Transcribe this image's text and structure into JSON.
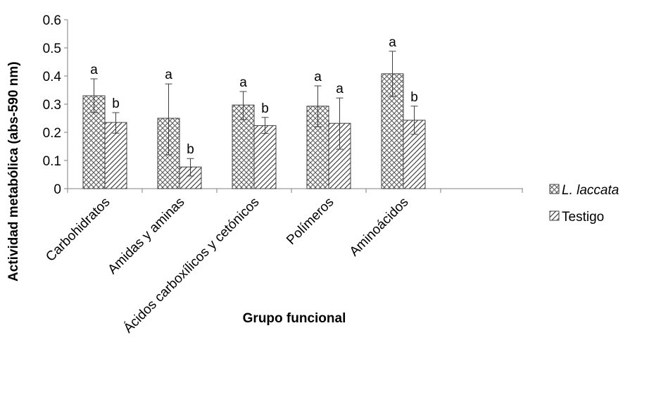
{
  "chart_data": {
    "type": "bar",
    "title": "",
    "xlabel": "Grupo funcional",
    "ylabel": "Actividad metabólica (abs-590 nm)",
    "ylim": [
      0,
      0.6
    ],
    "yticks": [
      "0",
      "0.1",
      "0.2",
      "0.3",
      "0.4",
      "0.5",
      "0.6"
    ],
    "categories": [
      "Carbohidratos",
      "Amidas y aminas",
      "Ácidos carboxílicos y cetónicos",
      "Polímeros",
      "Aminoácidos"
    ],
    "series": [
      {
        "name": "L. laccata",
        "pattern": "crosshatch",
        "values": [
          0.33,
          0.25,
          0.297,
          0.293,
          0.408
        ],
        "error_low": [
          0.27,
          0.12,
          0.245,
          0.22,
          0.328
        ],
        "error_high": [
          0.39,
          0.372,
          0.345,
          0.365,
          0.488
        ],
        "letters": [
          "a",
          "a",
          "a",
          "a",
          "a"
        ]
      },
      {
        "name": "Testigo",
        "pattern": "diagonal",
        "values": [
          0.235,
          0.077,
          0.224,
          0.232,
          0.243
        ],
        "error_low": [
          0.197,
          0.045,
          0.196,
          0.14,
          0.193
        ],
        "error_high": [
          0.27,
          0.107,
          0.253,
          0.322,
          0.293
        ],
        "letters": [
          "b",
          "b",
          "b",
          "a",
          "b"
        ]
      }
    ],
    "grid": false,
    "legend_position": "right"
  }
}
